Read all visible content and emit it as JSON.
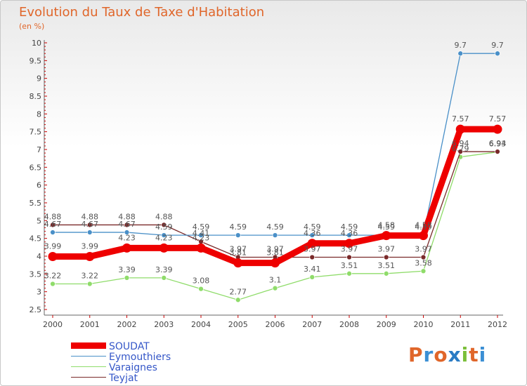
{
  "title": "Evolution du Taux de Taxe d'Habitation",
  "unit_label": "(en %)",
  "logo": {
    "text": "Proxiti",
    "colors": [
      "#e0662a",
      "#3b8fd4",
      "#e0662a",
      "#2a7bc4",
      "#7bbf3a",
      "#e0662a",
      "#3b8fd4"
    ]
  },
  "chart_data": {
    "type": "line",
    "title": "Evolution du Taux de Taxe d'Habitation",
    "ylabel": "(en %)",
    "xlabel": "",
    "x": [
      2000,
      2001,
      2002,
      2003,
      2004,
      2005,
      2006,
      2007,
      2008,
      2009,
      2010,
      2011,
      2012
    ],
    "ylim": [
      2.5,
      10
    ],
    "yticks": [
      "2.5",
      "3",
      "3.5",
      "4",
      "4.5",
      "5",
      "5.5",
      "6",
      "6.5",
      "7",
      "7.5",
      "8",
      "8.5",
      "9",
      "9.5",
      "10"
    ],
    "grid": false,
    "legend_position": "bottom-left",
    "series": [
      {
        "name": "Varaignes",
        "color": "#8fdc6a",
        "values": [
          3.22,
          3.22,
          3.39,
          3.39,
          3.08,
          2.77,
          3.1,
          3.41,
          3.51,
          3.51,
          3.58,
          6.79,
          6.93
        ],
        "labels": [
          "3.22",
          "3.22",
          "3.39",
          "3.39",
          "3.08",
          "2.77",
          "3.1",
          "3.41",
          "3.51",
          "3.51",
          "3.58",
          "6.79",
          "6.93"
        ]
      },
      {
        "name": "Teyjat",
        "color": "#7a2a2a",
        "values": [
          4.88,
          4.88,
          4.88,
          4.88,
          4.41,
          3.97,
          3.97,
          3.97,
          3.97,
          3.97,
          3.97,
          6.94,
          6.94
        ],
        "labels": [
          "4.88",
          "4.88",
          "4.88",
          "4.88",
          "4.41",
          "3.97",
          "3.97",
          "3.97",
          "3.97",
          "3.97",
          "3.97",
          "6.94",
          "6.94"
        ]
      },
      {
        "name": "Eymouthiers",
        "color": "#4a90c8",
        "values": [
          4.67,
          4.67,
          4.67,
          4.59,
          4.59,
          4.59,
          4.59,
          4.59,
          4.59,
          4.59,
          4.59,
          9.7,
          9.7
        ],
        "labels": [
          "4.67",
          "4.67",
          "4.67",
          "4.59",
          "4.59",
          "4.59",
          "4.59",
          "4.59",
          "4.59",
          "4.59",
          "4.59",
          "9.7",
          "9.7"
        ]
      },
      {
        "name": "SOUDAT",
        "color": "#ee0000",
        "values": [
          3.99,
          3.99,
          4.23,
          4.23,
          4.23,
          3.81,
          3.81,
          4.36,
          4.36,
          4.58,
          4.58,
          7.57,
          7.57
        ],
        "labels": [
          "3.99",
          "3.99",
          "4.23",
          "4.23",
          "4.23",
          "3.81",
          "3.81",
          "4.36",
          "4.36",
          "4.58",
          "4.58",
          "7.57",
          "7.57"
        ]
      }
    ],
    "legend_order": [
      "SOUDAT",
      "Eymouthiers",
      "Varaignes",
      "Teyjat"
    ]
  }
}
